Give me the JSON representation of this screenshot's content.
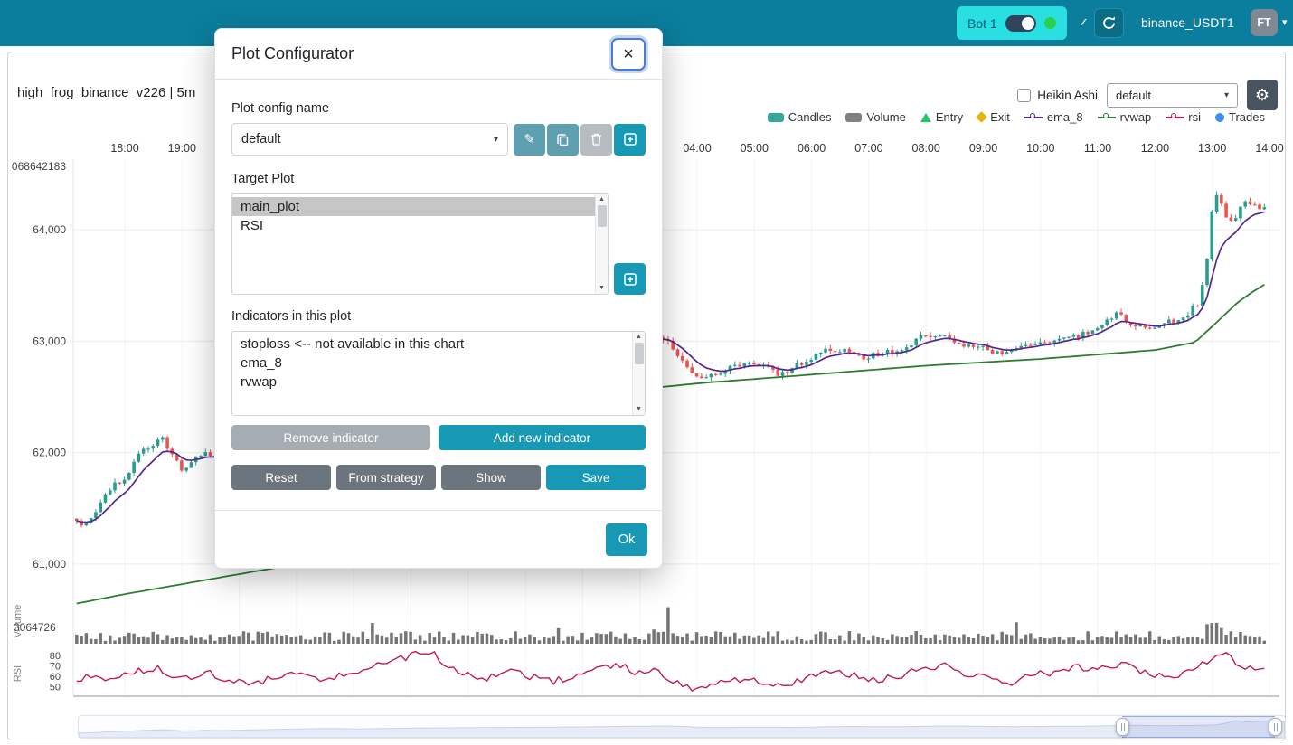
{
  "icons": {
    "close": "×",
    "check": "✓",
    "gear": "⚙",
    "pencil": "✎",
    "caret": "▾",
    "scroll_up": "▲",
    "scroll_down": "▼"
  },
  "header": {
    "bot_label": "Bot 1",
    "pair": "binance_USDT1",
    "avatar": "FT"
  },
  "chart": {
    "title": "high_frog_binance_v226 | 5m",
    "heikin_label": "Heikin Ashi",
    "plot_select": "default",
    "legend": [
      {
        "label": "Candles",
        "type": "rect",
        "color": "#35a79c"
      },
      {
        "label": "Volume",
        "type": "rect",
        "color": "#7f7f7f"
      },
      {
        "label": "Entry",
        "type": "triangle",
        "color": "#1fc55e"
      },
      {
        "label": "Exit",
        "type": "diamond",
        "color": "#e6b30f"
      },
      {
        "label": "ema_8",
        "type": "line",
        "color": "#54278f"
      },
      {
        "label": "rvwap",
        "type": "line",
        "color": "#2e7d32"
      },
      {
        "label": "rsi",
        "type": "line",
        "color": "#c2185b"
      },
      {
        "label": "Trades",
        "type": "circle",
        "color": "#3c8ff0"
      }
    ]
  },
  "chart_data": {
    "type": "candlestick",
    "x_ticks": [
      {
        "t": 18,
        "label": "18:00"
      },
      {
        "t": 19,
        "label": "19:00"
      },
      {
        "t": 28,
        "label": "04:00"
      },
      {
        "t": 29,
        "label": "05:00"
      },
      {
        "t": 30,
        "label": "06:00"
      },
      {
        "t": 31,
        "label": "07:00"
      },
      {
        "t": 32,
        "label": "08:00"
      },
      {
        "t": 33,
        "label": "09:00"
      },
      {
        "t": 34,
        "label": "10:00"
      },
      {
        "t": 35,
        "label": "11:00"
      },
      {
        "t": 36,
        "label": "12:00"
      },
      {
        "t": 37,
        "label": "13:00"
      },
      {
        "t": 38,
        "label": "14:00"
      }
    ],
    "y_ticks": [
      {
        "p": 64000,
        "label": "64,000"
      },
      {
        "p": 63000,
        "label": "63,000"
      },
      {
        "p": 62000,
        "label": "62,000"
      },
      {
        "p": 61000,
        "label": "61,000"
      }
    ],
    "y_top_label": "068642183",
    "volume_axis_label": "3064726",
    "volume_pane_label": "Volume",
    "rsi_pane_label": "RSI",
    "rsi_ticks": [
      {
        "v": 80,
        "label": "80"
      },
      {
        "v": 70,
        "label": "70"
      },
      {
        "v": 60,
        "label": "60"
      },
      {
        "v": 50,
        "label": "50"
      }
    ],
    "price_keyframes": [
      [
        17.1,
        61450
      ],
      [
        17.25,
        61340
      ],
      [
        17.45,
        61420
      ],
      [
        17.6,
        61600
      ],
      [
        17.8,
        61700
      ],
      [
        18.0,
        61780
      ],
      [
        18.2,
        61950
      ],
      [
        18.45,
        62060
      ],
      [
        18.65,
        62150
      ],
      [
        18.85,
        61950
      ],
      [
        19.0,
        61840
      ],
      [
        19.15,
        61900
      ],
      [
        19.35,
        62000
      ],
      [
        19.6,
        61930
      ],
      [
        20.0,
        62050
      ],
      [
        20.5,
        62200
      ],
      [
        21.0,
        62350
      ],
      [
        21.5,
        62430
      ],
      [
        22.0,
        62350
      ],
      [
        22.5,
        62450
      ],
      [
        23.0,
        62550
      ],
      [
        23.5,
        62600
      ],
      [
        24.0,
        62650
      ],
      [
        24.5,
        62700
      ],
      [
        25.0,
        62750
      ],
      [
        25.5,
        62800
      ],
      [
        26.0,
        62850
      ],
      [
        26.5,
        62950
      ],
      [
        27.0,
        63020
      ],
      [
        27.3,
        63060
      ],
      [
        27.55,
        62950
      ],
      [
        27.8,
        62780
      ],
      [
        28.0,
        62700
      ],
      [
        28.2,
        62670
      ],
      [
        28.5,
        62740
      ],
      [
        28.8,
        62800
      ],
      [
        29.1,
        62780
      ],
      [
        29.4,
        62700
      ],
      [
        29.7,
        62760
      ],
      [
        30.0,
        62850
      ],
      [
        30.3,
        62920
      ],
      [
        30.6,
        62940
      ],
      [
        30.9,
        62860
      ],
      [
        31.2,
        62880
      ],
      [
        31.5,
        62920
      ],
      [
        31.8,
        63000
      ],
      [
        32.1,
        63060
      ],
      [
        32.4,
        63030
      ],
      [
        32.7,
        62970
      ],
      [
        33.0,
        62930
      ],
      [
        33.3,
        62900
      ],
      [
        33.6,
        62930
      ],
      [
        33.9,
        62960
      ],
      [
        34.2,
        62990
      ],
      [
        34.5,
        63010
      ],
      [
        34.8,
        63080
      ],
      [
        35.1,
        63180
      ],
      [
        35.35,
        63240
      ],
      [
        35.6,
        63160
      ],
      [
        35.9,
        63120
      ],
      [
        36.2,
        63160
      ],
      [
        36.5,
        63220
      ],
      [
        36.75,
        63340
      ],
      [
        36.9,
        63700
      ],
      [
        37.0,
        64200
      ],
      [
        37.1,
        64380
      ],
      [
        37.2,
        64150
      ],
      [
        37.35,
        64060
      ],
      [
        37.55,
        64260
      ],
      [
        37.7,
        64230
      ],
      [
        37.92,
        64180
      ]
    ],
    "rvwap_keyframes": [
      [
        17.1,
        60640
      ],
      [
        18.0,
        60730
      ],
      [
        19.0,
        60820
      ],
      [
        20.0,
        60910
      ],
      [
        20.9,
        60990
      ],
      [
        21.8,
        61300
      ],
      [
        22.8,
        61750
      ],
      [
        24.0,
        62150
      ],
      [
        25.2,
        62380
      ],
      [
        26.4,
        62520
      ],
      [
        27.4,
        62590
      ],
      [
        28.2,
        62630
      ],
      [
        29.0,
        62660
      ],
      [
        30.0,
        62700
      ],
      [
        31.0,
        62740
      ],
      [
        32.0,
        62780
      ],
      [
        33.0,
        62810
      ],
      [
        34.0,
        62840
      ],
      [
        35.0,
        62880
      ],
      [
        36.0,
        62920
      ],
      [
        36.7,
        62990
      ],
      [
        37.1,
        63180
      ],
      [
        37.45,
        63350
      ],
      [
        37.7,
        63440
      ],
      [
        37.92,
        63510
      ]
    ],
    "rsi_keyframes": [
      [
        17.1,
        55
      ],
      [
        17.4,
        60
      ],
      [
        17.7,
        57
      ],
      [
        18.0,
        63
      ],
      [
        18.3,
        66
      ],
      [
        18.6,
        69
      ],
      [
        18.9,
        56
      ],
      [
        19.2,
        61
      ],
      [
        19.5,
        63
      ],
      [
        19.8,
        57
      ],
      [
        20.2,
        52
      ],
      [
        20.6,
        58
      ],
      [
        21.0,
        62
      ],
      [
        21.4,
        56
      ],
      [
        21.9,
        64
      ],
      [
        22.4,
        70
      ],
      [
        22.8,
        76
      ],
      [
        23.1,
        83
      ],
      [
        23.3,
        85
      ],
      [
        23.6,
        72
      ],
      [
        23.9,
        64
      ],
      [
        24.3,
        58
      ],
      [
        24.7,
        65
      ],
      [
        25.1,
        60
      ],
      [
        25.5,
        55
      ],
      [
        25.9,
        61
      ],
      [
        26.3,
        67
      ],
      [
        26.7,
        71
      ],
      [
        27.0,
        62
      ],
      [
        27.3,
        66
      ],
      [
        27.6,
        54
      ],
      [
        27.9,
        48
      ],
      [
        28.3,
        53
      ],
      [
        28.7,
        58
      ],
      [
        29.1,
        54
      ],
      [
        29.5,
        50
      ],
      [
        29.9,
        59
      ],
      [
        30.3,
        64
      ],
      [
        30.7,
        61
      ],
      [
        31.1,
        55
      ],
      [
        31.5,
        60
      ],
      [
        31.9,
        67
      ],
      [
        32.3,
        70
      ],
      [
        32.7,
        62
      ],
      [
        33.1,
        57
      ],
      [
        33.5,
        54
      ],
      [
        33.9,
        61
      ],
      [
        34.3,
        65
      ],
      [
        34.7,
        69
      ],
      [
        35.1,
        67
      ],
      [
        35.5,
        71
      ],
      [
        35.9,
        62
      ],
      [
        36.3,
        59
      ],
      [
        36.6,
        64
      ],
      [
        36.9,
        74
      ],
      [
        37.1,
        84
      ],
      [
        37.3,
        79
      ],
      [
        37.5,
        71
      ],
      [
        37.7,
        68
      ],
      [
        37.92,
        66
      ]
    ],
    "volume_spikes": [
      [
        22.3,
        3.4
      ],
      [
        27.45,
        2.9
      ],
      [
        30.8,
        2.7
      ],
      [
        33.6,
        1.8
      ],
      [
        36.95,
        3.2
      ],
      [
        37.05,
        3.8
      ],
      [
        37.15,
        3.4
      ],
      [
        37.25,
        2.8
      ],
      [
        37.35,
        2.2
      ]
    ],
    "datazoom": {
      "start": 0.865,
      "end": 0.992
    },
    "colors": {
      "up": "#2a9d8f",
      "down": "#ef5350",
      "ema": "#54278f",
      "rvwap": "#2e7d32",
      "rsi": "#c2185b",
      "volume": "#757575"
    }
  },
  "modal": {
    "title": "Plot Configurator",
    "config_name_label": "Plot config name",
    "config_name_value": "default",
    "target_plot_label": "Target Plot",
    "target_plots": [
      "main_plot",
      "RSI"
    ],
    "selected_plot": "main_plot",
    "indicators_label": "Indicators in this plot",
    "indicators": [
      "stoploss <-- not available in this chart",
      "ema_8",
      "rvwap"
    ],
    "buttons": {
      "remove": "Remove indicator",
      "add": "Add new indicator",
      "reset": "Reset",
      "from_strategy": "From strategy",
      "show": "Show",
      "save": "Save",
      "ok": "Ok"
    }
  }
}
